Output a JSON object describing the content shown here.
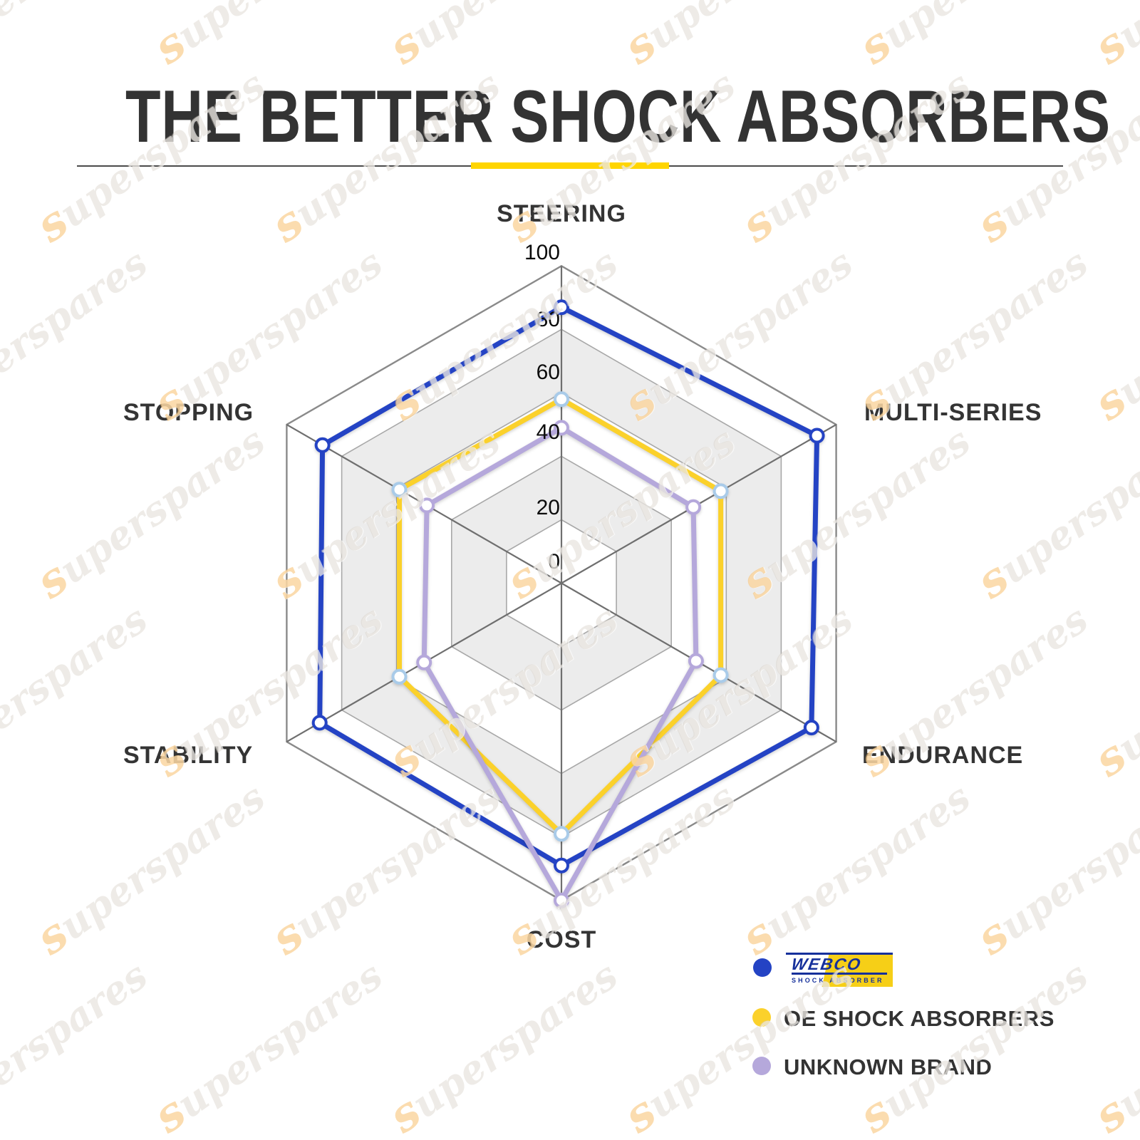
{
  "title": "THE BETTER SHOCK ABSORBERS",
  "watermark": {
    "text": "superspares"
  },
  "divider": {
    "accent_color": "#FFD500",
    "line_color": "#4a4a4a"
  },
  "chart_data": {
    "type": "radar",
    "title": "THE BETTER SHOCK ABSORBERS",
    "categories": [
      "STEERING",
      "MULTI-SERIES",
      "ENDURANCE",
      "COST",
      "STABILITY",
      "STOPPING"
    ],
    "ticks": [
      0,
      20,
      40,
      60,
      80,
      100
    ],
    "rmax": 100,
    "grid": {
      "bands": [
        "#ffffff",
        "#ececec"
      ],
      "ring_color": "#a8a8a8",
      "outer_color": "#8a8a8a",
      "spoke_color": "#6f6f6f"
    },
    "series": [
      {
        "name": "WEBCO",
        "color": "#2443C4",
        "marker_stroke": "#2443C4",
        "values": [
          87,
          93,
          91,
          89,
          88,
          87
        ]
      },
      {
        "name": "OE SHOCK ABSORBERS",
        "color": "#FBD12B",
        "marker_stroke": "#A9CBE9",
        "values": [
          58,
          58,
          58,
          79,
          59,
          59
        ]
      },
      {
        "name": "UNKNOWN BRAND",
        "color": "#B5A8DB",
        "marker_stroke": "#B5A8DB",
        "values": [
          49,
          48,
          49,
          100,
          50,
          49
        ]
      }
    ],
    "legend_position": "bottom-right"
  },
  "legend": {
    "items": [
      {
        "label": "WEBCO",
        "sublabel": "SHOCK ABSORBER",
        "dot_color": "#2443C4"
      },
      {
        "label": "OE SHOCK ABSORBERS",
        "dot_color": "#FBD12B"
      },
      {
        "label": "UNKNOWN BRAND",
        "dot_color": "#B5A8DB"
      }
    ]
  }
}
